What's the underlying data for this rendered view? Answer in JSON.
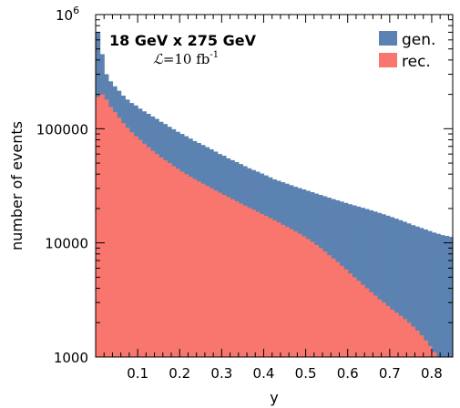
{
  "chart_data": {
    "type": "histogram",
    "xlabel": "y",
    "ylabel": "number of events",
    "xlim": [
      0.0,
      0.85
    ],
    "ylim": [
      1000,
      1000000
    ],
    "yscale": "log",
    "x_ticks": [
      0.1,
      0.2,
      0.3,
      0.4,
      0.5,
      0.6,
      0.7,
      0.8
    ],
    "x_tick_labels": [
      "0.1",
      "0.2",
      "0.3",
      "0.4",
      "0.5",
      "0.6",
      "0.7",
      "0.8"
    ],
    "y_ticks": [
      1000,
      10000,
      100000,
      1000000
    ],
    "y_tick_labels": [
      "1000",
      "10000",
      "100000"
    ],
    "y_top_label_base": "10",
    "y_top_label_exp": "6",
    "bin_width": 0.01,
    "annotations": {
      "energy": "18 GeV x 275 GeV",
      "lumi_symbol": "ℒ",
      "lumi_text": "=10 fb",
      "lumi_exp": "-1"
    },
    "legend_position": "top-right",
    "series": [
      {
        "name": "gen.",
        "color": "#5b82b0",
        "values": [
          700000,
          450000,
          300000,
          260000,
          235000,
          215000,
          195000,
          180000,
          168000,
          160000,
          150000,
          142000,
          135000,
          128000,
          122000,
          115000,
          110000,
          104000,
          99000,
          94000,
          90000,
          86000,
          82000,
          78000,
          75000,
          72000,
          69000,
          66000,
          63000,
          60000,
          58000,
          55000,
          53000,
          51000,
          49000,
          47000,
          45000,
          43500,
          42000,
          40500,
          39000,
          37500,
          36000,
          35000,
          34000,
          33000,
          32000,
          31000,
          30200,
          29400,
          28600,
          27800,
          27000,
          26300,
          25600,
          24900,
          24200,
          23600,
          23000,
          22400,
          21800,
          21300,
          20800,
          20300,
          19800,
          19300,
          18800,
          18300,
          17800,
          17300,
          16800,
          16300,
          15800,
          15300,
          14800,
          14300,
          13900,
          13500,
          13100,
          12700,
          12300,
          12000,
          11700,
          11500,
          11300
        ]
      },
      {
        "name": "rec.",
        "color": "#f8766d",
        "values": [
          190000,
          200000,
          180000,
          155000,
          140000,
          125000,
          112000,
          102000,
          93000,
          86000,
          80000,
          74000,
          69000,
          64000,
          60000,
          56000,
          53000,
          50000,
          47000,
          44500,
          42000,
          40000,
          38000,
          36200,
          34500,
          33000,
          31500,
          30000,
          28700,
          27500,
          26300,
          25200,
          24100,
          23100,
          22100,
          21200,
          20300,
          19500,
          18700,
          17900,
          17200,
          16500,
          15800,
          15100,
          14400,
          13800,
          13200,
          12600,
          12000,
          11400,
          10800,
          10200,
          9600,
          9000,
          8400,
          7800,
          7300,
          6800,
          6300,
          5850,
          5400,
          5000,
          4650,
          4300,
          4000,
          3700,
          3450,
          3200,
          3000,
          2800,
          2600,
          2450,
          2300,
          2150,
          2000,
          1850,
          1700,
          1550,
          1400,
          1250,
          1100,
          1000,
          1000,
          1000,
          1000
        ]
      }
    ]
  }
}
